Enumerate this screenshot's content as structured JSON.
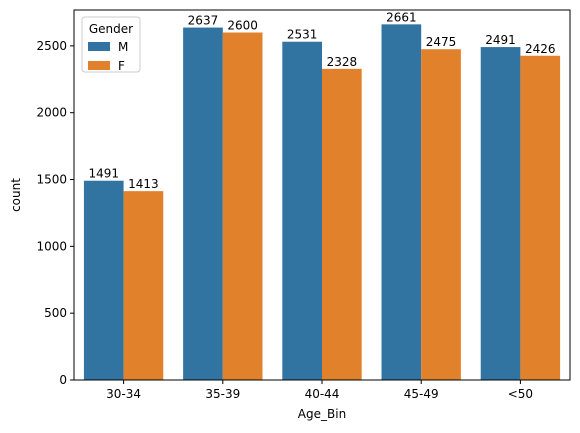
{
  "chart_data": {
    "type": "bar",
    "title": "",
    "xlabel": "Age_Bin",
    "ylabel": "count",
    "categories": [
      "30-34",
      "35-39",
      "40-44",
      "45-49",
      "<50"
    ],
    "series": [
      {
        "name": "M",
        "color": "#3274a1",
        "values": [
          1491,
          2637,
          2531,
          2661,
          2491
        ]
      },
      {
        "name": "F",
        "color": "#e1812c",
        "values": [
          1413,
          2600,
          2328,
          2475,
          2426
        ]
      }
    ],
    "ylim": [
      0,
      2768.4
    ],
    "yticks": [
      0,
      500,
      1000,
      1500,
      2000,
      2500
    ],
    "grid": false,
    "legend": {
      "title": "Gender",
      "placement": "top-left"
    },
    "data_labels": true
  }
}
